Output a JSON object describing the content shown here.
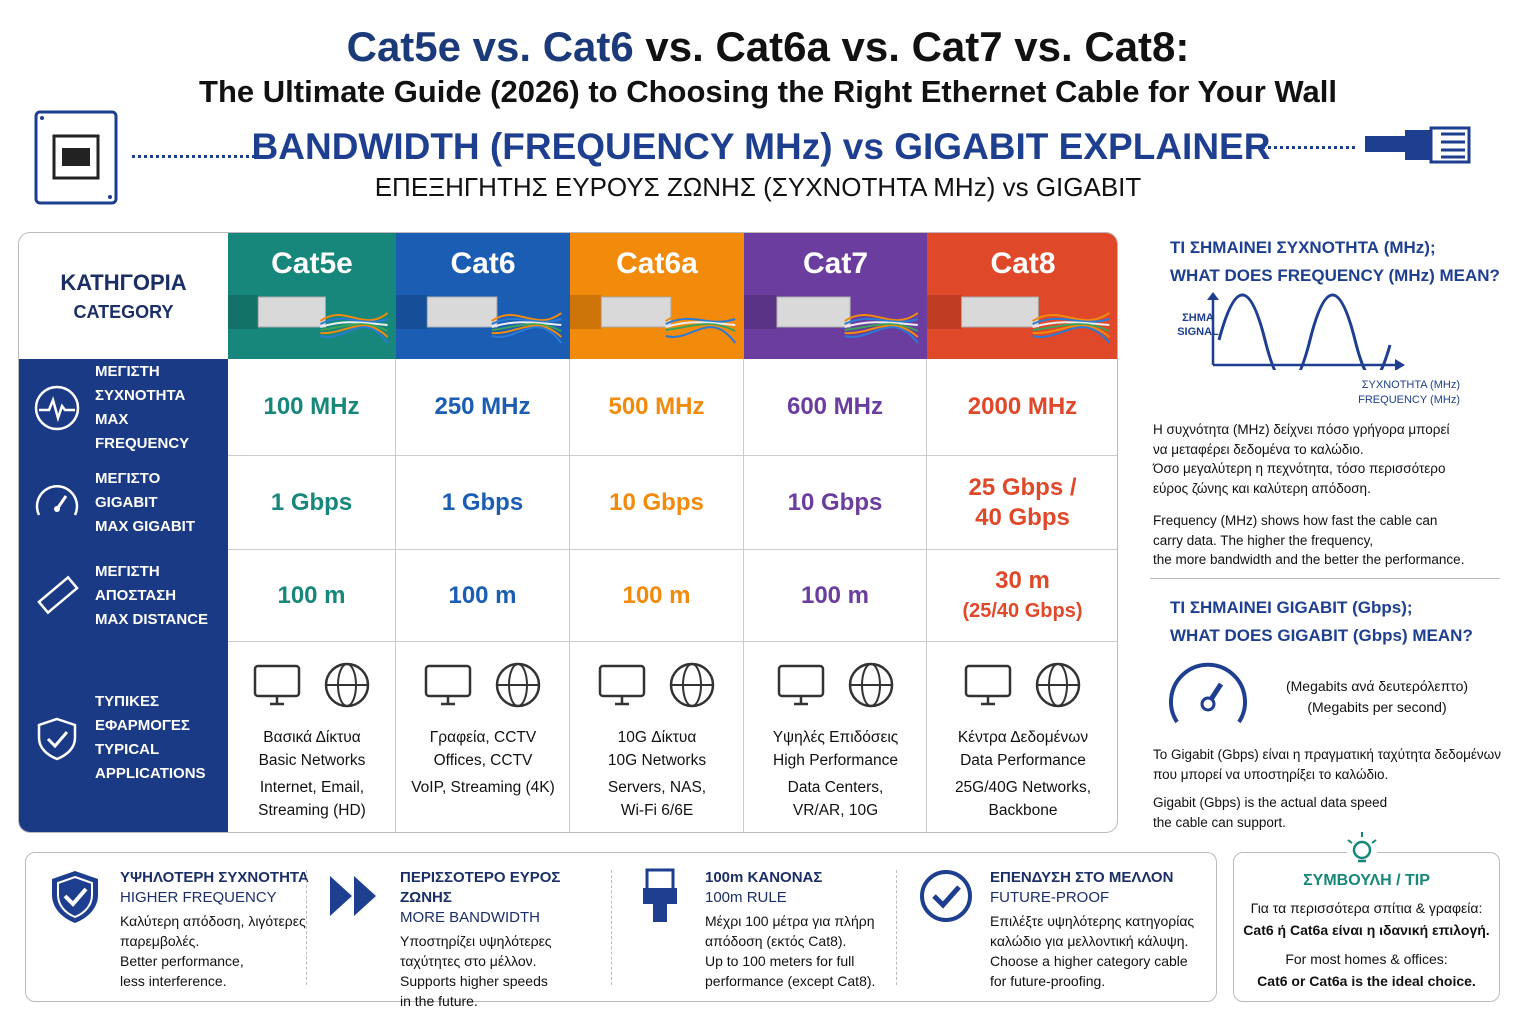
{
  "header": {
    "title_a": "Cat5e vs. Cat6",
    "title_b": " vs. Cat6a vs. Cat7 vs. Cat8:",
    "subtitle": "The Ultimate Guide (2026) to Choosing the Right Ethernet Cable for Your Wall",
    "banner_en": "BANDWIDTH (FREQUENCY MHz) vs GIGABIT EXPLAINER",
    "banner_gr": "ΕΠΕΞΗΓΗΤΗΣ ΕΥΡΟΥΣ ΖΩΝΗΣ (ΣΥΧΝΟΤΗΤΑ MHz) vs GIGABIT"
  },
  "table": {
    "category_header": [
      "ΚΑΤΗΓΟΡΙΑ",
      "CATEGORY"
    ],
    "columns": [
      {
        "name": "Cat5e",
        "color": "#16877a"
      },
      {
        "name": "Cat6",
        "color": "#1a5db3"
      },
      {
        "name": "Cat6a",
        "color": "#f28a0c"
      },
      {
        "name": "Cat7",
        "color": "#6a3d9e"
      },
      {
        "name": "Cat8",
        "color": "#e0482a"
      }
    ],
    "rows": [
      {
        "label": [
          "ΜΕΓΙΣΤΗ ΣΥΧΝΟΤΗΤΑ",
          "MAX FREQUENCY"
        ],
        "cells": [
          [
            "100 MHz"
          ],
          [
            "250 MHz"
          ],
          [
            "500 MHz"
          ],
          [
            "600 MHz"
          ],
          [
            "2000 MHz"
          ]
        ]
      },
      {
        "label": [
          "ΜΕΓΙΣΤΟ GIGABIT",
          "MAX GIGABIT"
        ],
        "cells": [
          [
            "1 Gbps"
          ],
          [
            "1 Gbps"
          ],
          [
            "10 Gbps"
          ],
          [
            "10 Gbps"
          ],
          [
            "25 Gbps /",
            "40 Gbps"
          ]
        ]
      },
      {
        "label": [
          "ΜΕΓΙΣΤΗ ΑΠΟΣΤΑΣΗ",
          "MAX DISTANCE"
        ],
        "cells": [
          [
            "100 m"
          ],
          [
            "100 m"
          ],
          [
            "100 m"
          ],
          [
            "100 m"
          ],
          [
            "30 m",
            "(25/40 Gbps)"
          ]
        ]
      },
      {
        "label": [
          "ΤΥΠΙΚΕΣ ΕΦΑΡΜΟΓΕΣ",
          "TYPICAL APPLICATIONS"
        ],
        "cells": [
          [
            "Βασικά Δίκτυα",
            "Basic Networks",
            "Internet, Email,",
            "Streaming (HD)"
          ],
          [
            "Γραφεία, CCTV",
            "Offices, CCTV",
            "VoIP, Streaming (4K)"
          ],
          [
            "10G Δίκτυα",
            "10G Networks",
            "Servers, NAS,",
            "Wi-Fi 6/6E"
          ],
          [
            "Υψηλές Επιδόσεις",
            "High Performance",
            "Data Centers,",
            "VR/AR, 10G"
          ],
          [
            "Κέντρα Δεδομένων",
            "Data Performance",
            "25G/40G Networks,",
            "Backbone"
          ]
        ]
      }
    ]
  },
  "side": {
    "frequency": {
      "title": [
        "ΤΙ ΣΗΜΑΙΝΕΙ ΣΥΧΝΟΤΗΤΑ (MHz);",
        "WHAT DOES FREQUENCY (MHz) MEAN?"
      ],
      "y_label": [
        "ΣΗΜΑ",
        "SIGNAL"
      ],
      "x_label": [
        "ΣΥΧΝΟΤΗΤΑ (MHz)",
        "FREQUENCY (MHz)"
      ],
      "text_gr": [
        "Η συχνότητα (MHz) δείχνει πόσο γρήγορα μπορεί",
        "να μεταφέρει δεδομένα το καλώδιο.",
        "Όσο μεγαλύτερη η πεχνότητα, τόσο περισσότερο",
        "εύρος ζώνης και καλύτερη απόδοση."
      ],
      "text_en": [
        "Frequency (MHz) shows how fast the cable can",
        "carry data. The higher the frequency,",
        "the more bandwidth and the better the performance."
      ]
    },
    "gigabit": {
      "title": [
        "ΤΙ ΣΗΜΑΙΝΕΙ GIGABIT (Gbps);",
        "WHAT DOES GIGABIT (Gbps) MEAN?"
      ],
      "gauge_label": [
        "(Megabits ανά δευτερόλεπτο)",
        "(Megabits per second)"
      ],
      "text_gr": [
        "Το Gigabit (Gbps) είναι η πραγματική ταχύτητα δεδομένων",
        "που μπορεί να υποστηρίξει το καλώδιο."
      ],
      "text_en": [
        "Gigabit (Gbps) is the actual data speed",
        "the cable can support."
      ]
    }
  },
  "features": [
    {
      "title": [
        "ΥΨΗΛΟΤΕΡΗ ΣΥΧΝΟΤΗΤΑ",
        "HIGHER FREQUENCY"
      ],
      "lines": [
        "Καλύτερη απόδοση, λιγότερες",
        "παρεμβολές.",
        "Better performance,",
        "less interference."
      ]
    },
    {
      "title": [
        "ΠΕΡΙΣΣΟΤΕΡΟ ΕΥΡΟΣ ΖΩΝΗΣ",
        "MORE BANDWIDTH"
      ],
      "lines": [
        "Υποστηρίζει υψηλότερες",
        "ταχύτητες στο μέλλον.",
        "Supports higher speeds",
        "in the future."
      ]
    },
    {
      "title": [
        "100m ΚΑΝΟΝΑΣ",
        "100m RULE"
      ],
      "lines": [
        "Μέχρι 100 μέτρα για πλήρη",
        "απόδοση (εκτός Cat8).",
        "Up to 100 meters for full",
        "performance (except Cat8)."
      ]
    },
    {
      "title": [
        "ΕΠΕΝΔΥΣΗ ΣΤΟ ΜΕΛΛΟΝ",
        "FUTURE-PROOF"
      ],
      "lines": [
        "Επιλέξτε υψηλότερης κατηγορίας",
        "καλώδιο για μελλοντική κάλυψη.",
        "Choose a higher category cable",
        "for future-proofing."
      ]
    }
  ],
  "tip": {
    "title": "ΣΥΜΒΟΥΛΗ / TIP",
    "lines": [
      "Για τα περισσότερα σπίτια & γραφεία:",
      "Cat6 ή Cat6a είναι η ιδανική επιλογή.",
      "For most homes & offices:",
      "Cat6 or Cat6a is the ideal choice."
    ]
  }
}
